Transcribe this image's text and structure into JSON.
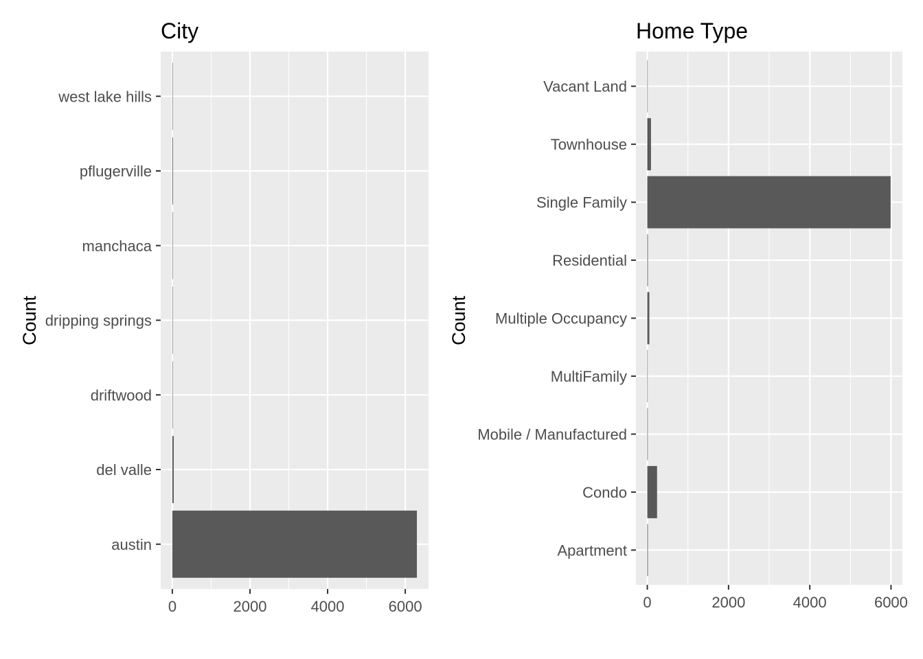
{
  "chart_data": [
    {
      "type": "bar",
      "orientation": "horizontal",
      "title": "City",
      "xlabel": "",
      "ylabel": "Count",
      "categories": [
        "austin",
        "del valle",
        "driftwood",
        "dripping springs",
        "manchaca",
        "pflugerville",
        "west lake hills"
      ],
      "values": [
        6300,
        35,
        1,
        1,
        2,
        15,
        1
      ],
      "xlim": [
        -300,
        6600
      ],
      "xticks": [
        0,
        2000,
        4000,
        6000
      ],
      "xtick_labels": [
        "0",
        "2000",
        "4000",
        "6000"
      ],
      "grid": true,
      "bar_color": "#595959",
      "panel_background": "#ebebeb"
    },
    {
      "type": "bar",
      "orientation": "horizontal",
      "title": "Home Type",
      "xlabel": "",
      "ylabel": "Count",
      "categories": [
        "Apartment",
        "Condo",
        "Mobile / Manufactured",
        "MultiFamily",
        "Multiple Occupancy",
        "Residential",
        "Single Family",
        "Townhouse",
        "Vacant Land"
      ],
      "values": [
        15,
        240,
        12,
        3,
        50,
        15,
        5990,
        90,
        3
      ],
      "xlim": [
        -280,
        6280
      ],
      "xticks": [
        0,
        2000,
        4000,
        6000
      ],
      "xtick_labels": [
        "0",
        "2000",
        "4000",
        "6000"
      ],
      "grid": true,
      "bar_color": "#595959",
      "panel_background": "#ebebeb"
    }
  ]
}
